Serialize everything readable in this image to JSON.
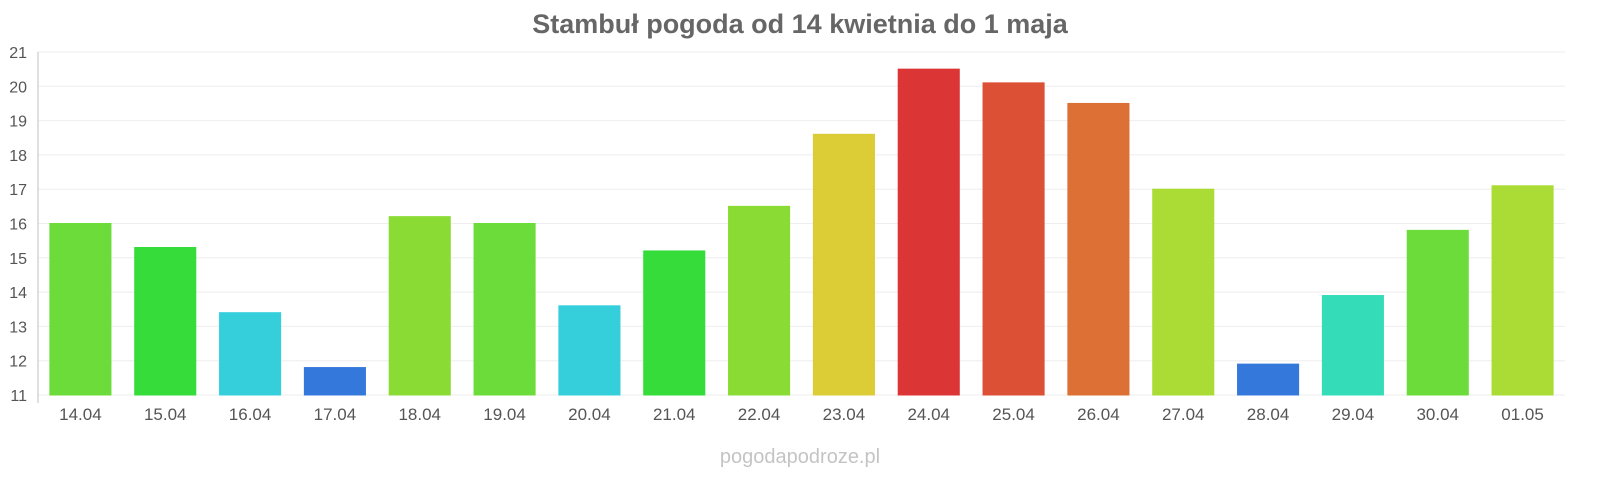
{
  "chart_data": {
    "type": "bar",
    "title": "Stambuł pogoda od 14 kwietnia do 1 maja",
    "xlabel": "",
    "ylabel": "",
    "categories": [
      "14.04",
      "15.04",
      "16.04",
      "17.04",
      "18.04",
      "19.04",
      "20.04",
      "21.04",
      "22.04",
      "23.04",
      "24.04",
      "25.04",
      "26.04",
      "27.04",
      "28.04",
      "29.04",
      "30.04",
      "01.05"
    ],
    "values": [
      16.0,
      15.3,
      13.4,
      11.8,
      16.2,
      16.0,
      13.6,
      15.2,
      16.5,
      18.6,
      20.5,
      20.1,
      19.5,
      17.0,
      11.9,
      13.9,
      15.8,
      17.1
    ],
    "colors": [
      "#6cdc3a",
      "#35dc3a",
      "#35cfdc",
      "#3578dc",
      "#8adc35",
      "#6cdc3a",
      "#35cfdc",
      "#35dc3a",
      "#8adc35",
      "#dccc35",
      "#dc3535",
      "#dc5035",
      "#dc7035",
      "#aadc35",
      "#3578dc",
      "#35dcb8",
      "#6cdc3a",
      "#aadc35"
    ],
    "ylim": [
      11,
      21
    ],
    "yticks": [
      11,
      12,
      13,
      14,
      15,
      16,
      17,
      18,
      19,
      20,
      21
    ],
    "grid": true,
    "legend": "none"
  },
  "watermark": "pogodapodroze.pl"
}
